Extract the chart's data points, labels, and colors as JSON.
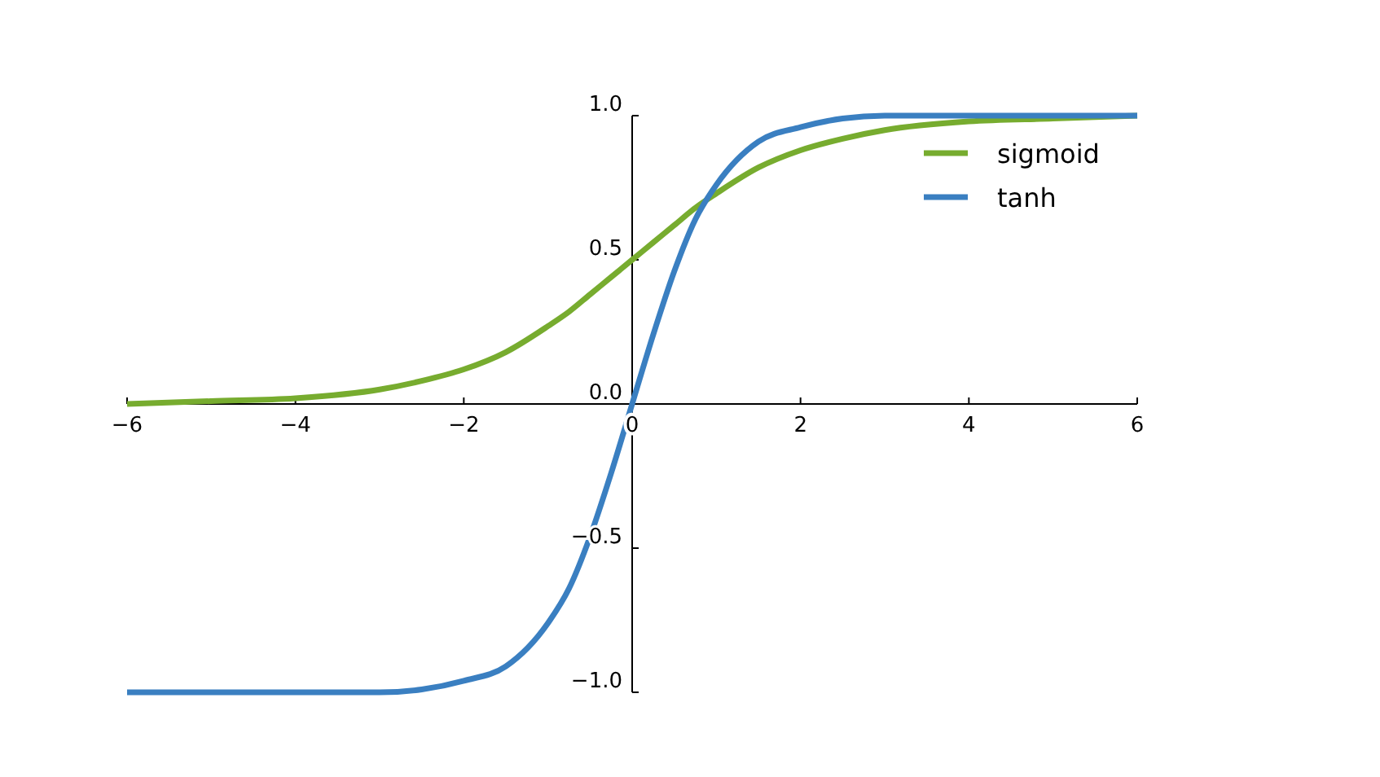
{
  "chart_data": {
    "type": "line",
    "x": [
      -6,
      -5,
      -4,
      -3,
      -2.5,
      -2,
      -1.5,
      -1,
      -0.75,
      -0.5,
      -0.25,
      0,
      0.25,
      0.5,
      0.75,
      1,
      1.5,
      2,
      2.5,
      3,
      4,
      5,
      6
    ],
    "series": [
      {
        "name": "sigmoid",
        "color": "#77ac2f",
        "values": [
          0.0,
          0.01,
          0.02,
          0.05,
          0.08,
          0.12,
          0.18,
          0.27,
          0.32,
          0.38,
          0.44,
          0.5,
          0.56,
          0.62,
          0.68,
          0.73,
          0.82,
          0.88,
          0.92,
          0.95,
          0.98,
          0.99,
          1.0
        ]
      },
      {
        "name": "tanh",
        "color": "#3a7fc1",
        "values": [
          -1,
          -1,
          -1,
          -1,
          -0.99,
          -0.96,
          -0.91,
          -0.76,
          -0.64,
          -0.46,
          -0.24,
          0,
          0.24,
          0.46,
          0.64,
          0.76,
          0.91,
          0.96,
          0.99,
          1,
          1,
          1,
          1
        ]
      }
    ],
    "xlim": [
      -6,
      6
    ],
    "ylim": [
      -1,
      1
    ],
    "xticks": [
      {
        "value": -6,
        "label": "−6"
      },
      {
        "value": -4,
        "label": "−4"
      },
      {
        "value": -2,
        "label": "−2"
      },
      0,
      2,
      4,
      6
    ],
    "yticks": [
      {
        "value": -1,
        "label": "−1.0"
      },
      {
        "value": -0.5,
        "label": "−0.5"
      },
      {
        "value": 0,
        "label": "0.0"
      },
      {
        "value": 0.5,
        "label": "0.5"
      },
      {
        "value": 1,
        "label": "1.0"
      }
    ],
    "legend": "top right"
  }
}
